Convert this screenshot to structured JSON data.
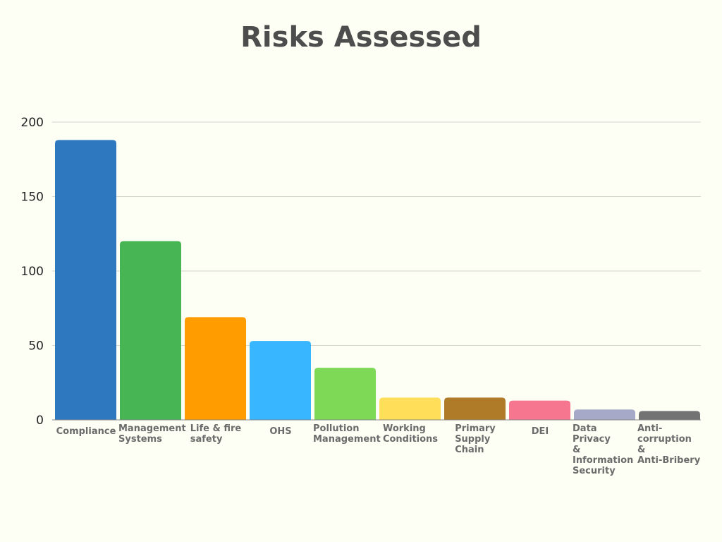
{
  "chart_data": {
    "type": "bar",
    "title": "Risks Assessed",
    "xlabel": "",
    "ylabel": "",
    "ylim": [
      0,
      200
    ],
    "yticks": [
      0,
      50,
      100,
      150,
      200
    ],
    "grid": true,
    "categories": [
      "Compliance",
      "Management Systems",
      "Life & fire safety",
      "OHS",
      "Pollution Management",
      "Working Conditions",
      "Primary Supply Chain",
      "DEI",
      "Data Privacy & Information Security",
      "Anti-corruption & Anti-Bribery"
    ],
    "values": [
      188,
      120,
      69,
      53,
      35,
      15,
      15,
      13,
      7,
      6
    ],
    "colors": [
      "#2e78c0",
      "#47b553",
      "#ff9d00",
      "#38b6ff",
      "#7ed957",
      "#ffde59",
      "#b07b28",
      "#f7768f",
      "#a6a9c8",
      "#737373"
    ]
  }
}
